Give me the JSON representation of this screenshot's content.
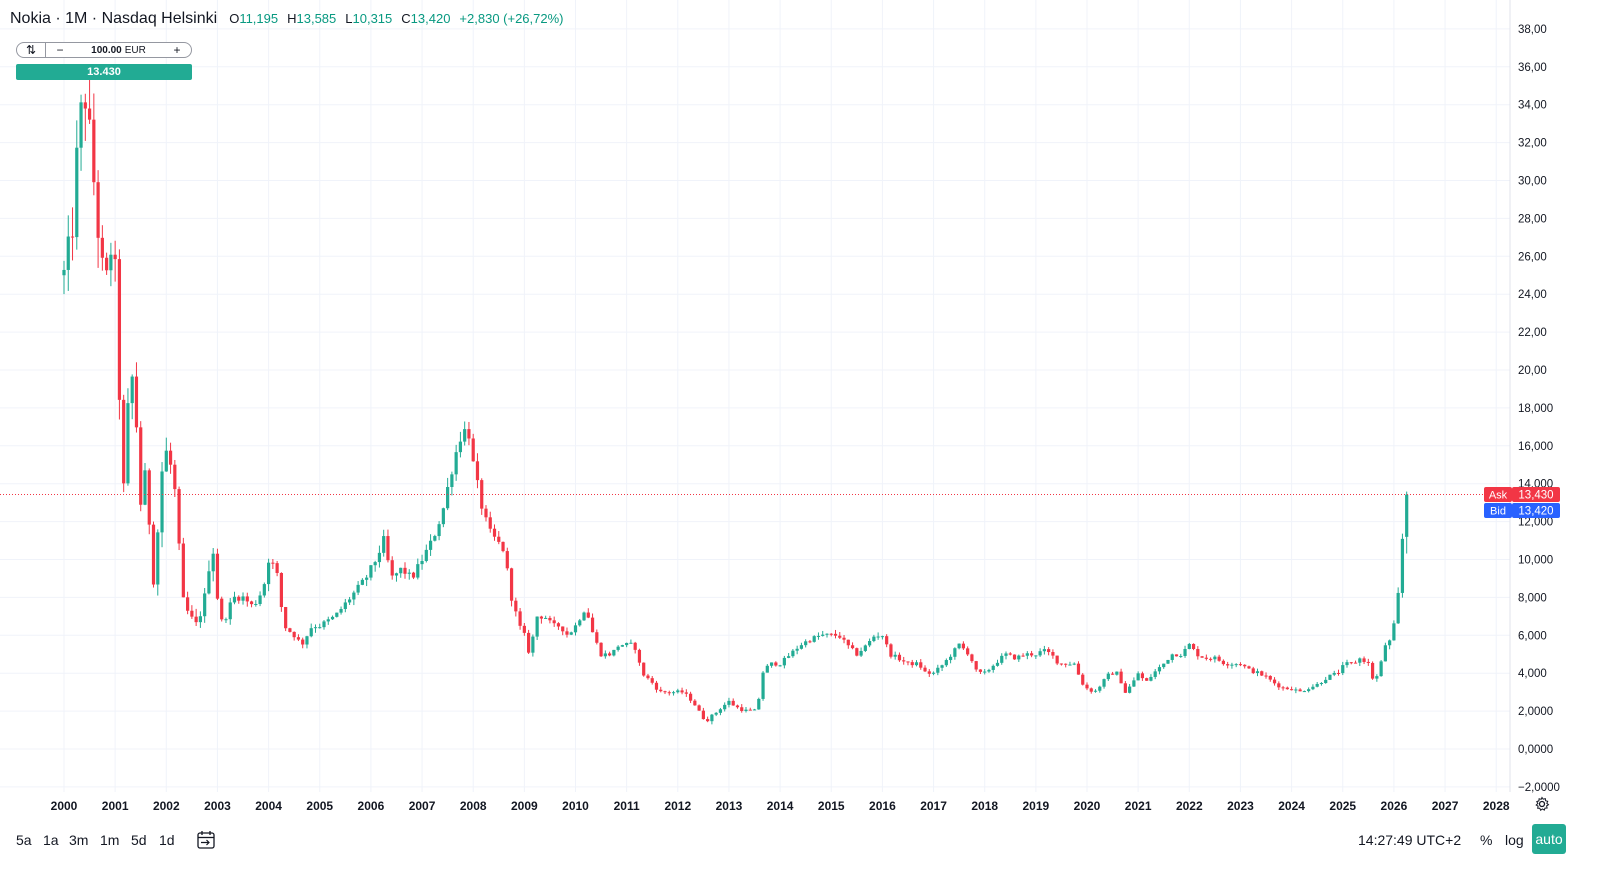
{
  "legend": {
    "title": "Nokia · 1M · Nasdaq Helsinki",
    "o_label": "O",
    "o_value": "11,195",
    "h_label": "H",
    "h_value": "13,585",
    "l_label": "L",
    "l_value": "10,315",
    "c_label": "C",
    "c_value": "13,420",
    "change": "+2,830 (+26,72%)"
  },
  "trade": {
    "qty": "100.00",
    "currency": "EUR",
    "minus": "−",
    "plus": "+",
    "buy_price": "13.430"
  },
  "price_labels": {
    "ask_label": "Ask",
    "ask_value": "13,430",
    "bid_label": "Bid",
    "bid_value": "13,420"
  },
  "bottom": {
    "ranges": [
      "5a",
      "1a",
      "3m",
      "1m",
      "5d",
      "1d"
    ],
    "clock": "14:27:49 UTC+2",
    "percent": "%",
    "log": "log",
    "auto": "auto"
  },
  "colors": {
    "up": "#22ab94",
    "down": "#f23645",
    "ask": "#f23645",
    "bid": "#2962ff",
    "grid": "#f0f3fa"
  },
  "icons": [
    "swap-icon",
    "calendar-icon",
    "gear-icon"
  ],
  "chart_data": {
    "type": "candlestick",
    "interval": "1M",
    "grid": true,
    "ylim": [
      -2.6,
      38.8
    ],
    "y_ticks": [
      "38,00",
      "36,00",
      "34,00",
      "32,00",
      "30,00",
      "28,00",
      "26,00",
      "24,00",
      "22,00",
      "20,00",
      "18,000",
      "16,000",
      "14,000",
      "12,000",
      "10,000",
      "8,000",
      "6,000",
      "4,000",
      "2,0000",
      "0,0000",
      "−2,0000"
    ],
    "y_tick_values": [
      38,
      36,
      34,
      32,
      30,
      28,
      26,
      24,
      22,
      20,
      18,
      16,
      14,
      12,
      10,
      8,
      6,
      4,
      2,
      0,
      -2
    ],
    "x_ticks": [
      "2000",
      "2001",
      "2002",
      "2003",
      "2004",
      "2005",
      "2006",
      "2007",
      "2008",
      "2009",
      "2010",
      "2011",
      "2012",
      "2013",
      "2014",
      "2015",
      "2016",
      "2017",
      "2018",
      "2019",
      "2020",
      "2021",
      "2022",
      "2023",
      "2024",
      "2025",
      "2026",
      "2027",
      "2028"
    ],
    "current_price_line": 13.43,
    "anchors": [
      [
        2000.0,
        25
      ],
      [
        2000.15,
        27
      ],
      [
        2000.3,
        33
      ],
      [
        2000.42,
        34.5
      ],
      [
        2000.55,
        31
      ],
      [
        2000.68,
        27
      ],
      [
        2000.8,
        24
      ],
      [
        2000.92,
        26.5
      ],
      [
        2001.0,
        25
      ],
      [
        2001.08,
        19
      ],
      [
        2001.17,
        13.5
      ],
      [
        2001.3,
        20.5
      ],
      [
        2001.42,
        17
      ],
      [
        2001.5,
        13
      ],
      [
        2001.6,
        14.5
      ],
      [
        2001.75,
        9
      ],
      [
        2001.85,
        12
      ],
      [
        2001.95,
        16
      ],
      [
        2002.08,
        15
      ],
      [
        2002.2,
        13
      ],
      [
        2002.3,
        8
      ],
      [
        2002.45,
        7
      ],
      [
        2002.6,
        6.5
      ],
      [
        2002.75,
        8
      ],
      [
        2002.9,
        11
      ],
      [
        2003.0,
        8
      ],
      [
        2003.1,
        6.5
      ],
      [
        2003.3,
        8
      ],
      [
        2003.5,
        8
      ],
      [
        2003.7,
        7.5
      ],
      [
        2003.9,
        8.5
      ],
      [
        2004.0,
        10
      ],
      [
        2004.15,
        9.5
      ],
      [
        2004.3,
        6.5
      ],
      [
        2004.5,
        6
      ],
      [
        2004.65,
        5.5
      ],
      [
        2004.85,
        6.5
      ],
      [
        2005.0,
        6.5
      ],
      [
        2005.3,
        7
      ],
      [
        2005.6,
        8
      ],
      [
        2005.9,
        9
      ],
      [
        2006.1,
        10
      ],
      [
        2006.25,
        11
      ],
      [
        2006.4,
        9
      ],
      [
        2006.6,
        9.5
      ],
      [
        2006.8,
        9
      ],
      [
        2007.0,
        10
      ],
      [
        2007.2,
        11
      ],
      [
        2007.4,
        12.5
      ],
      [
        2007.6,
        15
      ],
      [
        2007.75,
        16.5
      ],
      [
        2007.9,
        17
      ],
      [
        2008.0,
        15
      ],
      [
        2008.15,
        13
      ],
      [
        2008.3,
        11.5
      ],
      [
        2008.45,
        11
      ],
      [
        2008.6,
        10.5
      ],
      [
        2008.75,
        8
      ],
      [
        2008.9,
        6.5
      ],
      [
        2009.0,
        6
      ],
      [
        2009.1,
        5
      ],
      [
        2009.25,
        7
      ],
      [
        2009.4,
        7
      ],
      [
        2009.55,
        6.5
      ],
      [
        2009.7,
        6.5
      ],
      [
        2009.85,
        6
      ],
      [
        2010.0,
        6.5
      ],
      [
        2010.2,
        7.5
      ],
      [
        2010.35,
        6
      ],
      [
        2010.5,
        5
      ],
      [
        2010.7,
        5
      ],
      [
        2010.85,
        5.5
      ],
      [
        2011.0,
        5.5
      ],
      [
        2011.15,
        5.5
      ],
      [
        2011.3,
        4
      ],
      [
        2011.5,
        3.5
      ],
      [
        2011.65,
        3
      ],
      [
        2011.8,
        3
      ],
      [
        2011.95,
        3
      ],
      [
        2012.1,
        3
      ],
      [
        2012.3,
        2.5
      ],
      [
        2012.45,
        1.8
      ],
      [
        2012.55,
        1.5
      ],
      [
        2012.7,
        1.8
      ],
      [
        2012.85,
        2.2
      ],
      [
        2013.0,
        2.5
      ],
      [
        2013.15,
        2.2
      ],
      [
        2013.35,
        2
      ],
      [
        2013.55,
        2
      ],
      [
        2013.65,
        4
      ],
      [
        2013.8,
        4.5
      ],
      [
        2014.0,
        4.5
      ],
      [
        2014.2,
        5
      ],
      [
        2014.4,
        5.5
      ],
      [
        2014.6,
        5.8
      ],
      [
        2014.8,
        6
      ],
      [
        2015.0,
        6
      ],
      [
        2015.15,
        6
      ],
      [
        2015.3,
        5.5
      ],
      [
        2015.5,
        5
      ],
      [
        2015.7,
        5.5
      ],
      [
        2015.85,
        6
      ],
      [
        2016.0,
        6
      ],
      [
        2016.15,
        5
      ],
      [
        2016.3,
        4.8
      ],
      [
        2016.5,
        4.5
      ],
      [
        2016.7,
        4.5
      ],
      [
        2016.85,
        4
      ],
      [
        2017.0,
        4
      ],
      [
        2017.2,
        4.5
      ],
      [
        2017.35,
        5
      ],
      [
        2017.5,
        5.5
      ],
      [
        2017.7,
        5
      ],
      [
        2017.85,
        4
      ],
      [
        2018.0,
        4
      ],
      [
        2018.2,
        4.5
      ],
      [
        2018.4,
        5
      ],
      [
        2018.6,
        4.8
      ],
      [
        2018.8,
        5
      ],
      [
        2019.0,
        5
      ],
      [
        2019.15,
        5.2
      ],
      [
        2019.3,
        5
      ],
      [
        2019.45,
        4.5
      ],
      [
        2019.6,
        4.5
      ],
      [
        2019.75,
        4.5
      ],
      [
        2019.9,
        3.5
      ],
      [
        2020.0,
        3.2
      ],
      [
        2020.15,
        3
      ],
      [
        2020.3,
        3.5
      ],
      [
        2020.45,
        4
      ],
      [
        2020.6,
        4
      ],
      [
        2020.75,
        3
      ],
      [
        2020.9,
        3.5
      ],
      [
        2021.0,
        4
      ],
      [
        2021.15,
        3.5
      ],
      [
        2021.3,
        4
      ],
      [
        2021.5,
        4.5
      ],
      [
        2021.65,
        5
      ],
      [
        2021.85,
        5
      ],
      [
        2022.0,
        5.5
      ],
      [
        2022.15,
        5
      ],
      [
        2022.3,
        4.8
      ],
      [
        2022.5,
        4.8
      ],
      [
        2022.7,
        4.5
      ],
      [
        2022.85,
        4.5
      ],
      [
        2023.0,
        4.5
      ],
      [
        2023.15,
        4.2
      ],
      [
        2023.35,
        4
      ],
      [
        2023.5,
        3.8
      ],
      [
        2023.65,
        3.5
      ],
      [
        2023.85,
        3.2
      ],
      [
        2024.0,
        3.2
      ],
      [
        2024.15,
        3
      ],
      [
        2024.3,
        3.2
      ],
      [
        2024.5,
        3.4
      ],
      [
        2024.7,
        3.8
      ],
      [
        2024.9,
        4
      ],
      [
        2025.05,
        4.5
      ],
      [
        2025.2,
        4.5
      ],
      [
        2025.35,
        4.8
      ],
      [
        2025.5,
        4.5
      ],
      [
        2025.6,
        3.6
      ],
      [
        2025.72,
        4
      ],
      [
        2025.8,
        5.5
      ],
      [
        2025.9,
        5.5
      ],
      [
        2026.0,
        6.5
      ],
      [
        2026.08,
        8
      ],
      [
        2026.15,
        10.6
      ],
      [
        2026.25,
        13.42
      ]
    ]
  }
}
